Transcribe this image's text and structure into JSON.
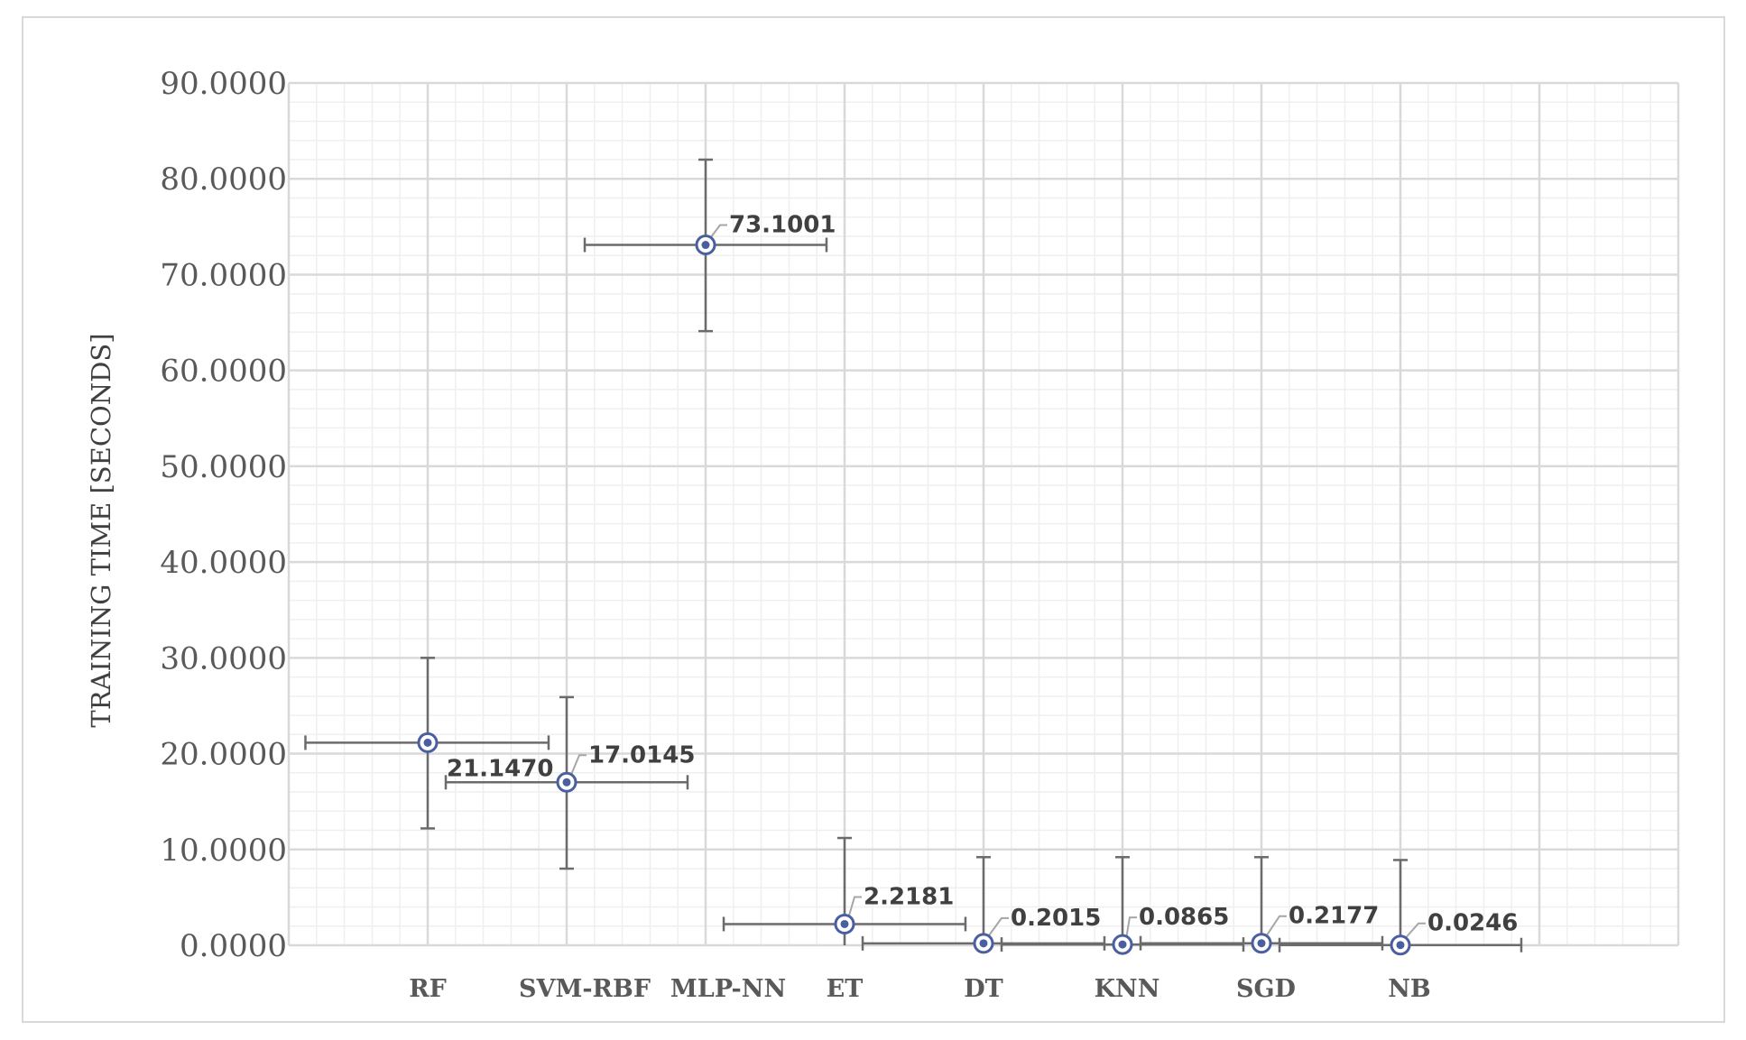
{
  "chart_data": {
    "type": "scatter",
    "title": "",
    "xlabel": "",
    "ylabel": "TRAINING TIME [SECONDS]",
    "ylim": [
      0,
      90
    ],
    "y_ticks": [
      "0.0000",
      "10.0000",
      "20.0000",
      "30.0000",
      "40.0000",
      "50.0000",
      "60.0000",
      "70.0000",
      "80.0000",
      "90.0000"
    ],
    "x_range": [
      0,
      10
    ],
    "categories": [
      "RF",
      "SVM-RBF",
      "MLP-NN",
      "ET",
      "DT",
      "KNN",
      "SGD",
      "NB"
    ],
    "x": [
      1,
      2,
      3,
      4,
      5,
      6,
      7,
      8
    ],
    "values": [
      21.147,
      17.0145,
      73.1001,
      2.2181,
      0.2015,
      0.0865,
      0.2177,
      0.0246
    ],
    "data_labels": [
      "21.1470",
      "17.0145",
      "73.1001",
      "2.2181",
      "0.2015",
      "0.0865",
      "0.2177",
      "0.0246"
    ],
    "y_error_bars": [
      {
        "low": 12.2,
        "high": 30.0
      },
      {
        "low": 8.0,
        "high": 25.9
      },
      {
        "low": 64.1,
        "high": 82.0
      },
      {
        "low": 0.0,
        "high": 11.2
      },
      {
        "low": 0.0,
        "high": 9.2
      },
      {
        "low": 0.0,
        "high": 9.2
      },
      {
        "low": 0.0,
        "high": 9.2
      },
      {
        "low": 0.0,
        "high": 8.9
      }
    ],
    "x_error_bars": [
      {
        "low": 0.12,
        "high": 1.87
      },
      {
        "low": 1.13,
        "high": 2.87
      },
      {
        "low": 2.13,
        "high": 3.87
      },
      {
        "low": 3.13,
        "high": 4.87
      },
      {
        "low": 4.13,
        "high": 5.87
      },
      {
        "low": 5.13,
        "high": 6.87
      },
      {
        "low": 6.13,
        "high": 7.87
      },
      {
        "low": 7.13,
        "high": 8.87
      }
    ],
    "grid": true,
    "legend": "none",
    "colors": {
      "marker": "#4a5fa0",
      "error_bar": "#6b6b6b",
      "grid_major": "#d9d9d9",
      "grid_minor": "#efefef",
      "leader_line": "#a6a6a6"
    }
  }
}
